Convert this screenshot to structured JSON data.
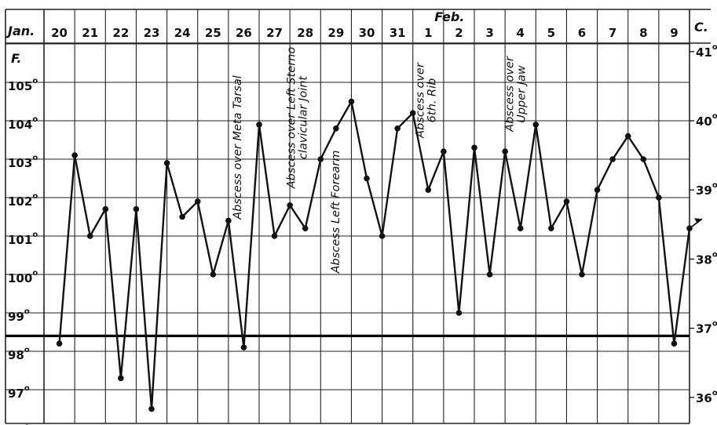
{
  "chart_data": {
    "type": "line",
    "title": "",
    "x_header_label": "Jan.",
    "month_marker": "Feb.",
    "y_left_label": "F.",
    "y_right_label": "C.",
    "categories": [
      "20",
      "21",
      "22",
      "23",
      "24",
      "25",
      "26",
      "27",
      "28",
      "29",
      "30",
      "31",
      "1",
      "2",
      "3",
      "4",
      "5",
      "6",
      "7",
      "8",
      "9"
    ],
    "y_left_ticks": [
      {
        "value": 105,
        "label": "105",
        "sup": "o"
      },
      {
        "value": 104,
        "label": "104",
        "sup": "o"
      },
      {
        "value": 103,
        "label": "103",
        "sup": "o"
      },
      {
        "value": 102,
        "label": "102",
        "sup": "o"
      },
      {
        "value": 101,
        "label": "101",
        "sup": "o"
      },
      {
        "value": 100,
        "label": "100",
        "sup": "o"
      },
      {
        "value": 99,
        "label": "99",
        "sup": "o"
      },
      {
        "value": 98,
        "label": "98",
        "sup": "o"
      },
      {
        "value": 97,
        "label": "97",
        "sup": "o"
      },
      {
        "value": 96,
        "label": "96",
        "sup": "o"
      }
    ],
    "y_right_ticks": [
      {
        "value": 41,
        "label": "41",
        "sup": "o"
      },
      {
        "value": 40,
        "label": "40",
        "sup": "o"
      },
      {
        "value": 39,
        "label": "39",
        "sup": "o"
      },
      {
        "value": 38,
        "label": "38",
        "sup": "o"
      },
      {
        "value": 37,
        "label": "37",
        "sup": "o"
      },
      {
        "value": 36,
        "label": "36",
        "sup": "o"
      }
    ],
    "ylim_f": [
      96,
      106
    ],
    "normal_line_f": 98.4,
    "series": [
      {
        "x": [
          20.0,
          20.5,
          21.0,
          21.5,
          22.0,
          22.5,
          23.0,
          23.5,
          24.0,
          24.5,
          25.0,
          25.5,
          26.0,
          26.5,
          27.0,
          27.5,
          28.0,
          28.5,
          29.0,
          29.5,
          30.0,
          30.5,
          31.0,
          31.5,
          32.0,
          32.5,
          33.0,
          33.5,
          34.0,
          34.5,
          35.0,
          35.5,
          36.0,
          36.5,
          37.0,
          37.5,
          38.0,
          38.5,
          39.0,
          39.5,
          40.0,
          40.5
        ],
        "values": [
          98.2,
          103.1,
          101.0,
          101.7,
          97.3,
          101.7,
          96.5,
          102.9,
          101.5,
          101.9,
          100.0,
          101.4,
          98.1,
          103.9,
          101.0,
          101.8,
          101.2,
          103.0,
          103.8,
          104.5,
          102.5,
          101.0,
          103.8,
          104.2,
          102.2,
          103.2,
          99.0,
          103.3,
          100.0,
          103.2,
          101.2,
          103.9,
          101.2,
          101.9,
          100.0,
          102.2,
          103.0,
          103.6,
          103.0,
          102.0,
          98.2,
          101.2
        ],
        "continues_arrow": true
      }
    ],
    "annotations": [
      {
        "text": "Abscess over Meta Tarsal",
        "lines": [
          "Abscess over Meta Tarsal"
        ],
        "day_index": 6
      },
      {
        "text": "Abscess over Left Sterno clavicular Joint",
        "lines": [
          "Abscess over Left Sterno",
          "clavicular Joint"
        ],
        "day_index": 8
      },
      {
        "text": "Abscess Left Forearm",
        "lines": [
          "Abscess Left Forearm"
        ],
        "day_index": 9
      },
      {
        "text": "Abscess over 6th. Rib",
        "lines": [
          "Abscess over",
          "6th. Rib"
        ],
        "day_index": 12
      },
      {
        "text": "Abscess over Upper Jaw",
        "lines": [
          "Abscess over",
          "Upper Jaw"
        ],
        "day_index": 15
      }
    ],
    "grid": true,
    "colors": {
      "line": "#111111",
      "grid": "#222222",
      "background": "#ffffff"
    }
  }
}
